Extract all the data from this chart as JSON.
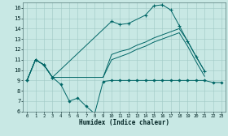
{
  "xlabel": "Humidex (Indice chaleur)",
  "xlim": [
    -0.5,
    23.5
  ],
  "ylim": [
    6,
    16.5
  ],
  "yticks": [
    6,
    7,
    8,
    9,
    10,
    11,
    12,
    13,
    14,
    15,
    16
  ],
  "xticks": [
    0,
    1,
    2,
    3,
    4,
    5,
    6,
    7,
    8,
    9,
    10,
    11,
    12,
    13,
    14,
    15,
    16,
    17,
    18,
    19,
    20,
    21,
    22,
    23
  ],
  "bg_color": "#c8e8e4",
  "line_color": "#006666",
  "grid_color": "#a0c8c4",
  "line1": {
    "x": [
      0,
      1,
      2,
      3,
      4,
      5,
      6,
      7,
      8,
      9,
      10,
      11,
      12,
      13,
      14,
      15,
      16,
      17,
      18,
      19,
      20,
      21,
      22,
      23
    ],
    "y": [
      9,
      11,
      10.5,
      9.3,
      8.6,
      7.0,
      7.3,
      6.5,
      5.8,
      8.9,
      9,
      9,
      9,
      9,
      9,
      9,
      9,
      9,
      9,
      9,
      9,
      9,
      8.8,
      8.8
    ]
  },
  "line2": {
    "x": [
      0,
      1,
      2,
      3,
      10,
      11,
      12,
      14,
      15,
      16,
      17,
      18,
      19,
      20,
      21
    ],
    "y": [
      9,
      11,
      10.5,
      9.3,
      14.7,
      14.4,
      14.5,
      15.3,
      16.2,
      16.3,
      15.8,
      14.3,
      12.75,
      11.3,
      9.9
    ]
  },
  "line3": {
    "x": [
      0,
      1,
      2,
      3,
      9,
      10,
      11,
      12,
      13,
      14,
      15,
      16,
      17,
      18,
      19,
      20,
      21
    ],
    "y": [
      9,
      11,
      10.5,
      9.3,
      9.3,
      11.5,
      11.8,
      12.0,
      12.4,
      12.7,
      13.1,
      13.4,
      13.7,
      14.0,
      12.8,
      11.3,
      9.9
    ]
  },
  "line4": {
    "x": [
      0,
      1,
      2,
      3,
      9,
      10,
      11,
      12,
      13,
      14,
      15,
      16,
      17,
      18,
      19,
      20,
      21
    ],
    "y": [
      9,
      11,
      10.5,
      9.3,
      9.3,
      11.0,
      11.3,
      11.6,
      12.0,
      12.3,
      12.7,
      13.0,
      13.3,
      13.6,
      12.3,
      10.8,
      9.4
    ]
  }
}
